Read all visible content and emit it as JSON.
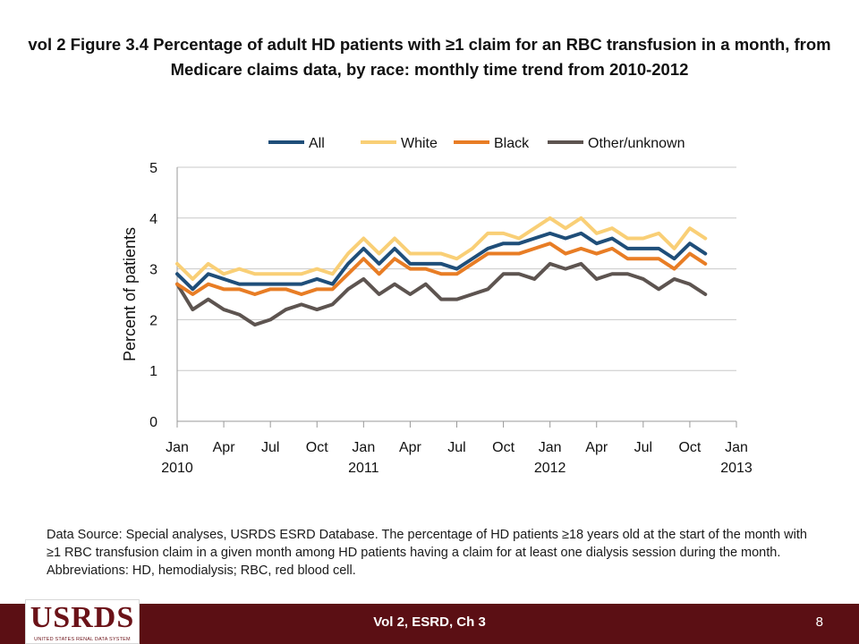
{
  "title": "vol 2  Figure 3.4 Percentage of adult HD patients with ≥1 claim for an RBC transfusion in a month, from Medicare claims data, by race: monthly time trend from 2010-2012",
  "caption": "Data Source: Special analyses, USRDS ESRD Database. The percentage of HD patients ≥18 years old at the start of the month with ≥1 RBC transfusion claim in a given month among HD patients having a claim for at least one dialysis session during the month. Abbreviations: HD, hemodialysis; RBC, red blood cell.",
  "footer": {
    "label": "Vol 2, ESRD, Ch 3",
    "page_number": "8",
    "logo_text": "USRDS",
    "logo_subtext": "UNITED STATES RENAL DATA SYSTEM"
  },
  "chart_data": {
    "type": "line",
    "ylabel": "Percent of patients",
    "ylim": [
      0,
      5
    ],
    "yticks": [
      "0",
      "1",
      "2",
      "3",
      "4",
      "5"
    ],
    "xlim": [
      0,
      36
    ],
    "xticks": [
      {
        "month": 0,
        "label": "Jan",
        "sub": "2010"
      },
      {
        "month": 3,
        "label": "Apr",
        "sub": ""
      },
      {
        "month": 6,
        "label": "Jul",
        "sub": ""
      },
      {
        "month": 9,
        "label": "Oct",
        "sub": ""
      },
      {
        "month": 12,
        "label": "Jan",
        "sub": "2011"
      },
      {
        "month": 15,
        "label": "Apr",
        "sub": ""
      },
      {
        "month": 18,
        "label": "Jul",
        "sub": ""
      },
      {
        "month": 21,
        "label": "Oct",
        "sub": ""
      },
      {
        "month": 24,
        "label": "Jan",
        "sub": "2012"
      },
      {
        "month": 27,
        "label": "Apr",
        "sub": ""
      },
      {
        "month": 30,
        "label": "Jul",
        "sub": ""
      },
      {
        "month": 33,
        "label": "Oct",
        "sub": ""
      },
      {
        "month": 36,
        "label": "Jan",
        "sub": "2013"
      }
    ],
    "grid": true,
    "legend_position": "top",
    "series": [
      {
        "name": "All",
        "color": "#1f4e79",
        "values": [
          2.9,
          2.6,
          2.9,
          2.8,
          2.7,
          2.7,
          2.7,
          2.7,
          2.7,
          2.8,
          2.7,
          3.1,
          3.4,
          3.1,
          3.4,
          3.1,
          3.1,
          3.1,
          3.0,
          3.2,
          3.4,
          3.5,
          3.5,
          3.6,
          3.7,
          3.6,
          3.7,
          3.5,
          3.6,
          3.4,
          3.4,
          3.4,
          3.2,
          3.5,
          3.3
        ]
      },
      {
        "name": "White",
        "color": "#f9cf76",
        "values": [
          3.1,
          2.8,
          3.1,
          2.9,
          3.0,
          2.9,
          2.9,
          2.9,
          2.9,
          3.0,
          2.9,
          3.3,
          3.6,
          3.3,
          3.6,
          3.3,
          3.3,
          3.3,
          3.2,
          3.4,
          3.7,
          3.7,
          3.6,
          3.8,
          4.0,
          3.8,
          4.0,
          3.7,
          3.8,
          3.6,
          3.6,
          3.7,
          3.4,
          3.8,
          3.6
        ]
      },
      {
        "name": "Black",
        "color": "#e87d25",
        "values": [
          2.7,
          2.5,
          2.7,
          2.6,
          2.6,
          2.5,
          2.6,
          2.6,
          2.5,
          2.6,
          2.6,
          2.9,
          3.2,
          2.9,
          3.2,
          3.0,
          3.0,
          2.9,
          2.9,
          3.1,
          3.3,
          3.3,
          3.3,
          3.4,
          3.5,
          3.3,
          3.4,
          3.3,
          3.4,
          3.2,
          3.2,
          3.2,
          3.0,
          3.3,
          3.1
        ]
      },
      {
        "name": "Other/unknown",
        "color": "#5d5450",
        "values": [
          2.7,
          2.2,
          2.4,
          2.2,
          2.1,
          1.9,
          2.0,
          2.2,
          2.3,
          2.2,
          2.3,
          2.6,
          2.8,
          2.5,
          2.7,
          2.5,
          2.7,
          2.4,
          2.4,
          2.5,
          2.6,
          2.9,
          2.9,
          2.8,
          3.1,
          3.0,
          3.1,
          2.8,
          2.9,
          2.9,
          2.8,
          2.6,
          2.8,
          2.7,
          2.5
        ]
      }
    ]
  }
}
